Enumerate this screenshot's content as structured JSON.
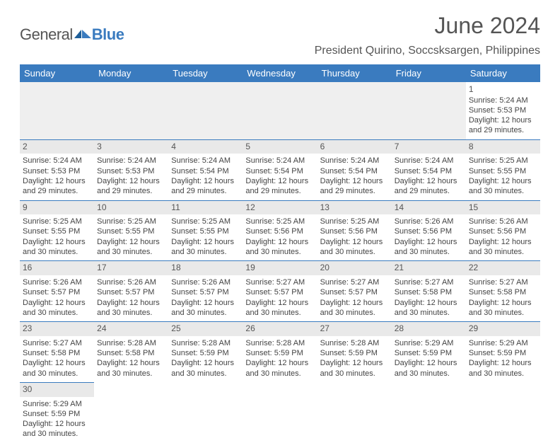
{
  "brand": {
    "general": "General",
    "blue": "Blue"
  },
  "header": {
    "month_title": "June 2024",
    "location": "President Quirino, Soccsksargen, Philippines"
  },
  "calendar": {
    "header_bg": "#3a7bbf",
    "header_fg": "#ffffff",
    "border_color": "#3a7bbf",
    "daynum_bg": "#e9e9e9",
    "days": [
      "Sunday",
      "Monday",
      "Tuesday",
      "Wednesday",
      "Thursday",
      "Friday",
      "Saturday"
    ],
    "weeks": [
      [
        null,
        null,
        null,
        null,
        null,
        null,
        {
          "n": "1",
          "sr": "Sunrise: 5:24 AM",
          "ss": "Sunset: 5:53 PM",
          "d1": "Daylight: 12 hours",
          "d2": "and 29 minutes."
        }
      ],
      [
        {
          "n": "2",
          "sr": "Sunrise: 5:24 AM",
          "ss": "Sunset: 5:53 PM",
          "d1": "Daylight: 12 hours",
          "d2": "and 29 minutes."
        },
        {
          "n": "3",
          "sr": "Sunrise: 5:24 AM",
          "ss": "Sunset: 5:53 PM",
          "d1": "Daylight: 12 hours",
          "d2": "and 29 minutes."
        },
        {
          "n": "4",
          "sr": "Sunrise: 5:24 AM",
          "ss": "Sunset: 5:54 PM",
          "d1": "Daylight: 12 hours",
          "d2": "and 29 minutes."
        },
        {
          "n": "5",
          "sr": "Sunrise: 5:24 AM",
          "ss": "Sunset: 5:54 PM",
          "d1": "Daylight: 12 hours",
          "d2": "and 29 minutes."
        },
        {
          "n": "6",
          "sr": "Sunrise: 5:24 AM",
          "ss": "Sunset: 5:54 PM",
          "d1": "Daylight: 12 hours",
          "d2": "and 29 minutes."
        },
        {
          "n": "7",
          "sr": "Sunrise: 5:24 AM",
          "ss": "Sunset: 5:54 PM",
          "d1": "Daylight: 12 hours",
          "d2": "and 29 minutes."
        },
        {
          "n": "8",
          "sr": "Sunrise: 5:25 AM",
          "ss": "Sunset: 5:55 PM",
          "d1": "Daylight: 12 hours",
          "d2": "and 30 minutes."
        }
      ],
      [
        {
          "n": "9",
          "sr": "Sunrise: 5:25 AM",
          "ss": "Sunset: 5:55 PM",
          "d1": "Daylight: 12 hours",
          "d2": "and 30 minutes."
        },
        {
          "n": "10",
          "sr": "Sunrise: 5:25 AM",
          "ss": "Sunset: 5:55 PM",
          "d1": "Daylight: 12 hours",
          "d2": "and 30 minutes."
        },
        {
          "n": "11",
          "sr": "Sunrise: 5:25 AM",
          "ss": "Sunset: 5:55 PM",
          "d1": "Daylight: 12 hours",
          "d2": "and 30 minutes."
        },
        {
          "n": "12",
          "sr": "Sunrise: 5:25 AM",
          "ss": "Sunset: 5:56 PM",
          "d1": "Daylight: 12 hours",
          "d2": "and 30 minutes."
        },
        {
          "n": "13",
          "sr": "Sunrise: 5:25 AM",
          "ss": "Sunset: 5:56 PM",
          "d1": "Daylight: 12 hours",
          "d2": "and 30 minutes."
        },
        {
          "n": "14",
          "sr": "Sunrise: 5:26 AM",
          "ss": "Sunset: 5:56 PM",
          "d1": "Daylight: 12 hours",
          "d2": "and 30 minutes."
        },
        {
          "n": "15",
          "sr": "Sunrise: 5:26 AM",
          "ss": "Sunset: 5:56 PM",
          "d1": "Daylight: 12 hours",
          "d2": "and 30 minutes."
        }
      ],
      [
        {
          "n": "16",
          "sr": "Sunrise: 5:26 AM",
          "ss": "Sunset: 5:57 PM",
          "d1": "Daylight: 12 hours",
          "d2": "and 30 minutes."
        },
        {
          "n": "17",
          "sr": "Sunrise: 5:26 AM",
          "ss": "Sunset: 5:57 PM",
          "d1": "Daylight: 12 hours",
          "d2": "and 30 minutes."
        },
        {
          "n": "18",
          "sr": "Sunrise: 5:26 AM",
          "ss": "Sunset: 5:57 PM",
          "d1": "Daylight: 12 hours",
          "d2": "and 30 minutes."
        },
        {
          "n": "19",
          "sr": "Sunrise: 5:27 AM",
          "ss": "Sunset: 5:57 PM",
          "d1": "Daylight: 12 hours",
          "d2": "and 30 minutes."
        },
        {
          "n": "20",
          "sr": "Sunrise: 5:27 AM",
          "ss": "Sunset: 5:57 PM",
          "d1": "Daylight: 12 hours",
          "d2": "and 30 minutes."
        },
        {
          "n": "21",
          "sr": "Sunrise: 5:27 AM",
          "ss": "Sunset: 5:58 PM",
          "d1": "Daylight: 12 hours",
          "d2": "and 30 minutes."
        },
        {
          "n": "22",
          "sr": "Sunrise: 5:27 AM",
          "ss": "Sunset: 5:58 PM",
          "d1": "Daylight: 12 hours",
          "d2": "and 30 minutes."
        }
      ],
      [
        {
          "n": "23",
          "sr": "Sunrise: 5:27 AM",
          "ss": "Sunset: 5:58 PM",
          "d1": "Daylight: 12 hours",
          "d2": "and 30 minutes."
        },
        {
          "n": "24",
          "sr": "Sunrise: 5:28 AM",
          "ss": "Sunset: 5:58 PM",
          "d1": "Daylight: 12 hours",
          "d2": "and 30 minutes."
        },
        {
          "n": "25",
          "sr": "Sunrise: 5:28 AM",
          "ss": "Sunset: 5:59 PM",
          "d1": "Daylight: 12 hours",
          "d2": "and 30 minutes."
        },
        {
          "n": "26",
          "sr": "Sunrise: 5:28 AM",
          "ss": "Sunset: 5:59 PM",
          "d1": "Daylight: 12 hours",
          "d2": "and 30 minutes."
        },
        {
          "n": "27",
          "sr": "Sunrise: 5:28 AM",
          "ss": "Sunset: 5:59 PM",
          "d1": "Daylight: 12 hours",
          "d2": "and 30 minutes."
        },
        {
          "n": "28",
          "sr": "Sunrise: 5:29 AM",
          "ss": "Sunset: 5:59 PM",
          "d1": "Daylight: 12 hours",
          "d2": "and 30 minutes."
        },
        {
          "n": "29",
          "sr": "Sunrise: 5:29 AM",
          "ss": "Sunset: 5:59 PM",
          "d1": "Daylight: 12 hours",
          "d2": "and 30 minutes."
        }
      ],
      [
        {
          "n": "30",
          "sr": "Sunrise: 5:29 AM",
          "ss": "Sunset: 5:59 PM",
          "d1": "Daylight: 12 hours",
          "d2": "and 30 minutes."
        },
        null,
        null,
        null,
        null,
        null,
        null
      ]
    ]
  }
}
